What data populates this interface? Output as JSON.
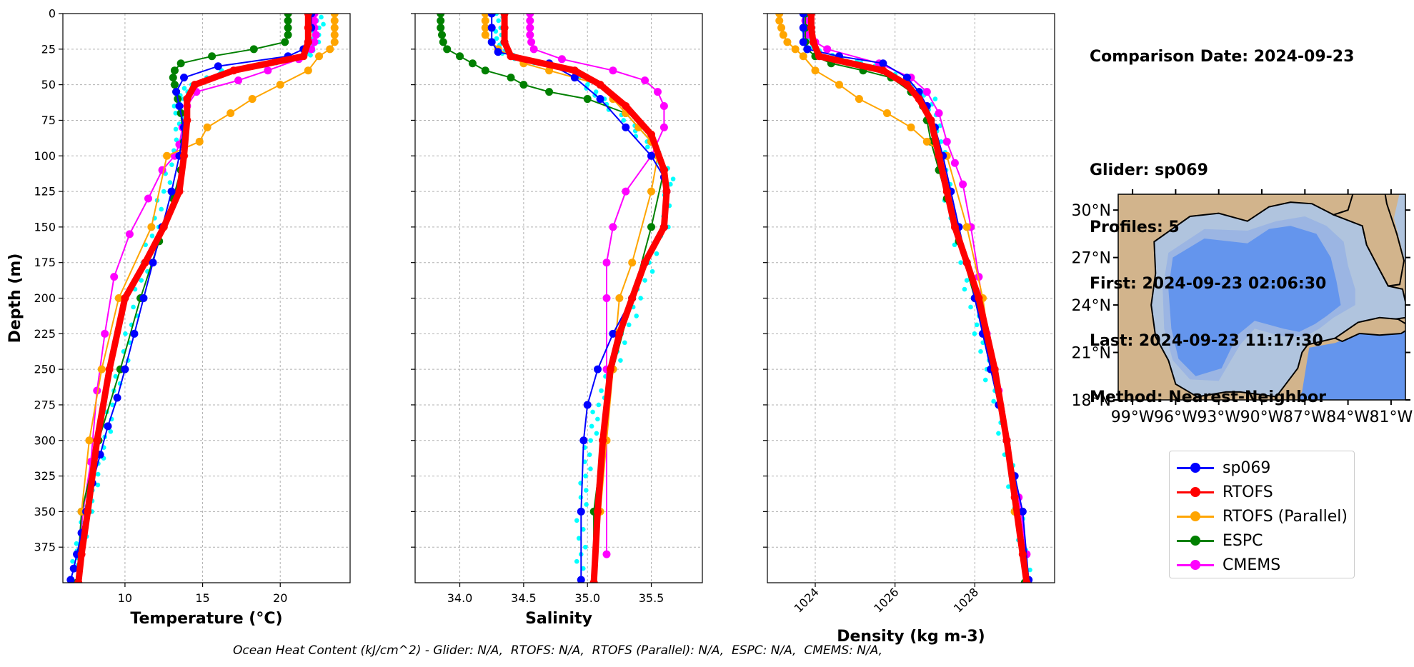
{
  "info": {
    "comparison_date": "Comparison Date: 2024-09-23",
    "glider": "Glider: sp069",
    "profiles": "Profiles: 5",
    "first": "First: 2024-09-23 02:06:30",
    "last": "Last: 2024-09-23 11:17:30",
    "method": "Method: Nearest-Neighbor"
  },
  "footer": "Ocean Heat Content (kJ/cm^2) - Glider: N/A,  RTOFS: N/A,  RTOFS (Parallel): N/A,  ESPC: N/A,  CMEMS: N/A,",
  "legend": [
    {
      "name": "sp069",
      "color": "#0000ff"
    },
    {
      "name": "RTOFS",
      "color": "#ff0000"
    },
    {
      "name": "RTOFS (Parallel)",
      "color": "#ffa500"
    },
    {
      "name": "ESPC",
      "color": "#008000"
    },
    {
      "name": "CMEMS",
      "color": "#ff00ff"
    }
  ],
  "colors": {
    "glider_raw": "#00ffff",
    "land": "#d2b48c",
    "deep": "#6495ed",
    "shelf": "#b0c4de",
    "mid": "#9bb5e3"
  },
  "map": {
    "lat_ticks": [
      18,
      21,
      24,
      27,
      30
    ],
    "lat_labels": [
      "18°N",
      "21°N",
      "24°N",
      "27°N",
      "30°N"
    ],
    "lon_ticks": [
      -99,
      -96,
      -93,
      -90,
      -87,
      -84,
      -81
    ],
    "lon_labels": [
      "99°W",
      "96°W",
      "93°W",
      "90°W",
      "87°W",
      "84°W",
      "81°W"
    ],
    "extent": [
      -100,
      -80,
      18,
      31
    ]
  },
  "chart_data": [
    {
      "type": "line",
      "xlabel": "Temperature (°C)",
      "ylabel": "Depth (m)",
      "xlim": [
        6,
        24.5
      ],
      "ylim": [
        400,
        0
      ],
      "xticks": [
        10,
        15,
        20
      ],
      "xtick_labels": [
        "10",
        "15",
        "20"
      ],
      "yticks": [
        0,
        25,
        50,
        75,
        100,
        125,
        150,
        175,
        200,
        225,
        250,
        275,
        300,
        325,
        350,
        375
      ],
      "ytick_labels": [
        "0",
        "25",
        "50",
        "75",
        "100",
        "125",
        "150",
        "175",
        "200",
        "225",
        "250",
        "275",
        "300",
        "325",
        "350",
        "375"
      ],
      "raw": {
        "x": [
          22.5,
          22.5,
          22.2,
          21.9,
          21.0,
          16.5,
          14.3,
          13.5,
          13.4,
          13.6,
          13.0,
          12.5,
          11.9,
          11.3,
          10.8,
          10.3,
          9.8,
          9.3,
          8.9,
          8.5,
          8.2,
          7.9,
          7.6,
          7.3,
          7.1,
          6.9,
          6.7
        ],
        "y": [
          0,
          10,
          20,
          28,
          33,
          40,
          50,
          60,
          70,
          85,
          100,
          125,
          150,
          175,
          200,
          225,
          250,
          270,
          290,
          305,
          320,
          335,
          350,
          365,
          375,
          385,
          395
        ]
      },
      "series": [
        {
          "name": "sp069",
          "x": [
            22.0,
            22.0,
            21.8,
            21.5,
            20.5,
            16.0,
            13.8,
            13.3,
            13.5,
            13.8,
            13.5,
            13.0,
            12.4,
            11.8,
            11.2,
            10.6,
            10.0,
            9.5,
            8.9,
            8.4,
            7.9,
            7.5,
            7.2,
            6.9,
            6.7,
            6.5
          ],
          "y": [
            0,
            10,
            20,
            25,
            30,
            37,
            45,
            55,
            65,
            80,
            100,
            125,
            150,
            175,
            200,
            225,
            250,
            270,
            290,
            310,
            330,
            350,
            365,
            380,
            390,
            398
          ]
        },
        {
          "name": "RTOFS",
          "x": [
            21.8,
            21.8,
            21.8,
            21.5,
            17.0,
            14.5,
            14.0,
            14.0,
            13.8,
            13.5,
            12.5,
            11.3,
            10.0,
            9.0,
            8.2,
            7.6,
            7.2,
            7.0
          ],
          "y": [
            0,
            10,
            20,
            30,
            40,
            50,
            60,
            75,
            100,
            125,
            150,
            175,
            200,
            250,
            300,
            350,
            380,
            400
          ]
        },
        {
          "name": "RTOFS (Parallel)",
          "x": [
            23.5,
            23.5,
            23.5,
            23.5,
            23.5,
            23.2,
            22.5,
            21.8,
            20.0,
            18.2,
            16.8,
            15.3,
            14.8,
            12.7,
            11.7,
            9.6,
            8.5,
            7.7,
            7.2
          ],
          "y": [
            0,
            5,
            10,
            15,
            20,
            25,
            30,
            40,
            50,
            60,
            70,
            80,
            90,
            100,
            150,
            200,
            250,
            300,
            350
          ]
        },
        {
          "name": "ESPC",
          "x": [
            20.5,
            20.5,
            20.5,
            20.5,
            20.3,
            18.3,
            15.6,
            13.6,
            13.2,
            13.1,
            13.2,
            13.3,
            13.4,
            13.6,
            13.8,
            13.6,
            13.1,
            12.2,
            11.0,
            9.7,
            8.3,
            7.2,
            6.9
          ],
          "y": [
            0,
            5,
            10,
            15,
            20,
            25,
            30,
            35,
            40,
            45,
            50,
            55,
            60,
            70,
            90,
            110,
            130,
            160,
            200,
            250,
            300,
            350,
            400
          ]
        },
        {
          "name": "CMEMS",
          "x": [
            22.2,
            22.2,
            22.2,
            22.3,
            22.2,
            22.0,
            21.2,
            19.2,
            17.3,
            14.6,
            14.0,
            13.7,
            13.5,
            13.2,
            12.4,
            11.5,
            10.3,
            9.3,
            8.7,
            8.2,
            7.8,
            7.3,
            7.0
          ],
          "y": [
            0,
            5,
            10,
            15,
            20,
            25,
            32,
            40,
            47,
            55,
            65,
            80,
            92,
            100,
            110,
            130,
            155,
            185,
            225,
            265,
            315,
            350,
            380
          ]
        }
      ]
    },
    {
      "type": "line",
      "xlabel": "Salinity",
      "xlim": [
        33.65,
        35.9
      ],
      "ylim": [
        400,
        0
      ],
      "xticks": [
        34.0,
        34.5,
        35.0,
        35.5
      ],
      "xtick_labels": [
        "34.0",
        "34.5",
        "35.0",
        "35.5"
      ],
      "raw": {
        "x": [
          34.32,
          34.32,
          34.3,
          34.35,
          34.5,
          34.9,
          35.0,
          35.1,
          35.3,
          35.45,
          35.6,
          35.65,
          35.6,
          35.5,
          35.4,
          35.3,
          35.2,
          35.1,
          35.05,
          35.0,
          34.98,
          34.95,
          34.95,
          34.95
        ],
        "y": [
          0,
          10,
          20,
          28,
          33,
          40,
          50,
          60,
          75,
          90,
          105,
          120,
          150,
          175,
          200,
          225,
          250,
          270,
          290,
          310,
          330,
          350,
          375,
          395
        ]
      },
      "series": [
        {
          "name": "sp069",
          "x": [
            34.25,
            34.25,
            34.25,
            34.3,
            34.7,
            34.9,
            35.1,
            35.3,
            35.5,
            35.6,
            35.62,
            35.6,
            35.45,
            35.35,
            35.2,
            35.08,
            35.0,
            34.97,
            34.95,
            34.95
          ],
          "y": [
            0,
            10,
            20,
            27,
            35,
            45,
            60,
            80,
            100,
            115,
            125,
            150,
            175,
            200,
            225,
            250,
            275,
            300,
            350,
            398
          ]
        },
        {
          "name": "RTOFS",
          "x": [
            34.35,
            34.35,
            34.35,
            34.4,
            34.9,
            35.1,
            35.3,
            35.5,
            35.6,
            35.62,
            35.6,
            35.45,
            35.35,
            35.25,
            35.18,
            35.12,
            35.08,
            35.05
          ],
          "y": [
            0,
            10,
            20,
            30,
            40,
            50,
            65,
            85,
            110,
            125,
            150,
            175,
            200,
            225,
            250,
            300,
            350,
            400
          ]
        },
        {
          "name": "RTOFS (Parallel)",
          "x": [
            34.2,
            34.2,
            34.2,
            34.2,
            34.3,
            34.5,
            34.7,
            34.9,
            35.1,
            35.2,
            35.3,
            35.4,
            35.5,
            35.55,
            35.5,
            35.35,
            35.25,
            35.2,
            35.15,
            35.1
          ],
          "y": [
            0,
            5,
            10,
            15,
            25,
            35,
            40,
            45,
            50,
            60,
            70,
            80,
            90,
            100,
            125,
            175,
            200,
            250,
            300,
            350
          ]
        },
        {
          "name": "ESPC",
          "x": [
            33.85,
            33.85,
            33.85,
            33.86,
            33.87,
            33.9,
            34.0,
            34.1,
            34.2,
            34.4,
            34.5,
            34.7,
            35.0,
            35.3,
            35.5,
            35.6,
            35.5,
            35.35,
            35.2,
            35.12,
            35.05,
            35.05
          ],
          "y": [
            0,
            5,
            10,
            15,
            20,
            25,
            30,
            35,
            40,
            45,
            50,
            55,
            60,
            70,
            90,
            110,
            150,
            200,
            250,
            300,
            350,
            400
          ]
        },
        {
          "name": "CMEMS",
          "x": [
            34.55,
            34.55,
            34.55,
            34.55,
            34.56,
            34.58,
            34.8,
            35.2,
            35.45,
            35.55,
            35.6,
            35.6,
            35.5,
            35.3,
            35.2,
            35.15,
            35.15,
            35.15,
            35.15
          ],
          "y": [
            0,
            5,
            10,
            15,
            20,
            25,
            32,
            40,
            47,
            55,
            65,
            80,
            100,
            125,
            150,
            175,
            200,
            250,
            380
          ]
        }
      ]
    },
    {
      "type": "line",
      "xlabel": "Density (kg m-3)",
      "xlim": [
        1022.8,
        1030.0
      ],
      "ylim": [
        400,
        0
      ],
      "xticks": [
        1024,
        1026,
        1028
      ],
      "xtick_labels": [
        "1024",
        "1026",
        "1028"
      ],
      "raw": {
        "x": [
          1023.8,
          1023.8,
          1023.9,
          1024.1,
          1025.0,
          1025.8,
          1026.4,
          1026.9,
          1027.0,
          1027.1,
          1027.2,
          1027.3,
          1027.5,
          1027.7,
          1027.9,
          1028.1,
          1028.3,
          1028.6,
          1028.8,
          1029.0,
          1029.2,
          1029.3
        ],
        "y": [
          0,
          10,
          20,
          28,
          33,
          40,
          50,
          60,
          75,
          90,
          105,
          125,
          150,
          175,
          200,
          225,
          250,
          280,
          310,
          340,
          370,
          398
        ]
      },
      "series": [
        {
          "name": "sp069",
          "x": [
            1023.7,
            1023.7,
            1023.7,
            1023.8,
            1024.6,
            1025.7,
            1026.3,
            1026.6,
            1026.8,
            1027.0,
            1027.2,
            1027.4,
            1027.6,
            1027.8,
            1028.0,
            1028.2,
            1028.4,
            1028.6,
            1028.8,
            1029.0,
            1029.2,
            1029.35
          ],
          "y": [
            0,
            10,
            20,
            25,
            30,
            35,
            45,
            55,
            65,
            80,
            100,
            125,
            150,
            175,
            200,
            225,
            250,
            275,
            300,
            325,
            350,
            398
          ]
        },
        {
          "name": "RTOFS",
          "x": [
            1023.9,
            1023.9,
            1023.95,
            1024.1,
            1025.7,
            1026.3,
            1026.6,
            1026.9,
            1027.1,
            1027.3,
            1027.5,
            1027.8,
            1028.1,
            1028.5,
            1028.8,
            1029.0,
            1029.2,
            1029.3
          ],
          "y": [
            0,
            10,
            20,
            30,
            40,
            50,
            60,
            75,
            100,
            125,
            150,
            175,
            200,
            250,
            300,
            340,
            380,
            400
          ]
        },
        {
          "name": "RTOFS (Parallel)",
          "x": [
            1023.1,
            1023.1,
            1023.15,
            1023.2,
            1023.3,
            1023.5,
            1023.7,
            1024.0,
            1024.6,
            1025.1,
            1025.8,
            1026.4,
            1026.8,
            1027.3,
            1027.8,
            1028.2,
            1028.45,
            1028.8,
            1029.0
          ],
          "y": [
            0,
            5,
            10,
            15,
            20,
            25,
            30,
            40,
            50,
            60,
            70,
            80,
            90,
            100,
            150,
            200,
            250,
            300,
            350
          ]
        },
        {
          "name": "ESPC",
          "x": [
            1023.75,
            1023.75,
            1023.75,
            1023.8,
            1024.0,
            1024.4,
            1025.2,
            1025.9,
            1026.4,
            1026.7,
            1026.8,
            1026.9,
            1027.1,
            1027.3,
            1027.6,
            1028.0,
            1028.4,
            1028.8,
            1029.0,
            1029.25
          ],
          "y": [
            0,
            10,
            20,
            25,
            30,
            35,
            40,
            45,
            55,
            65,
            75,
            90,
            110,
            130,
            160,
            200,
            250,
            300,
            350,
            400
          ]
        },
        {
          "name": "CMEMS",
          "x": [
            1023.75,
            1023.75,
            1023.75,
            1023.8,
            1024.0,
            1024.3,
            1025.6,
            1026.4,
            1026.8,
            1027.1,
            1027.3,
            1027.5,
            1027.7,
            1027.9,
            1028.1,
            1028.3,
            1028.6,
            1028.8,
            1029.1,
            1029.3
          ],
          "y": [
            0,
            5,
            10,
            15,
            20,
            25,
            35,
            45,
            55,
            70,
            90,
            105,
            120,
            150,
            185,
            225,
            265,
            300,
            340,
            380
          ]
        }
      ]
    }
  ]
}
